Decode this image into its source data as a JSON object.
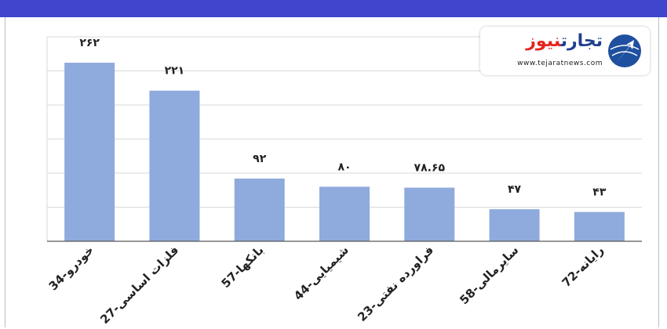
{
  "logo": {
    "word1": "تجارت",
    "word2": "نیوز",
    "url": "www.tejaratnews.com"
  },
  "colors": {
    "header": "#3f45cc",
    "bar": "#8faadc",
    "grid": "#d9d9d9",
    "axis": "#595959"
  },
  "chart_data": {
    "type": "bar",
    "categories": [
      "34-خودرو",
      "27-فلزات اساسی",
      "57-بانکها",
      "44-شیمیایی",
      "23-فراورده نفتی",
      "58-سایرمالی",
      "72-رایانه"
    ],
    "values": [
      262,
      221,
      92,
      80,
      78.65,
      47,
      43
    ],
    "data_labels": [
      "۲۶۲",
      "۲۲۱",
      "۹۲",
      "۸۰",
      "۷۸.۶۵",
      "۴۷",
      "۴۳"
    ],
    "title": "",
    "xlabel": "",
    "ylabel": "",
    "ylim": [
      0,
      300
    ],
    "grid": true,
    "legend": "none"
  }
}
